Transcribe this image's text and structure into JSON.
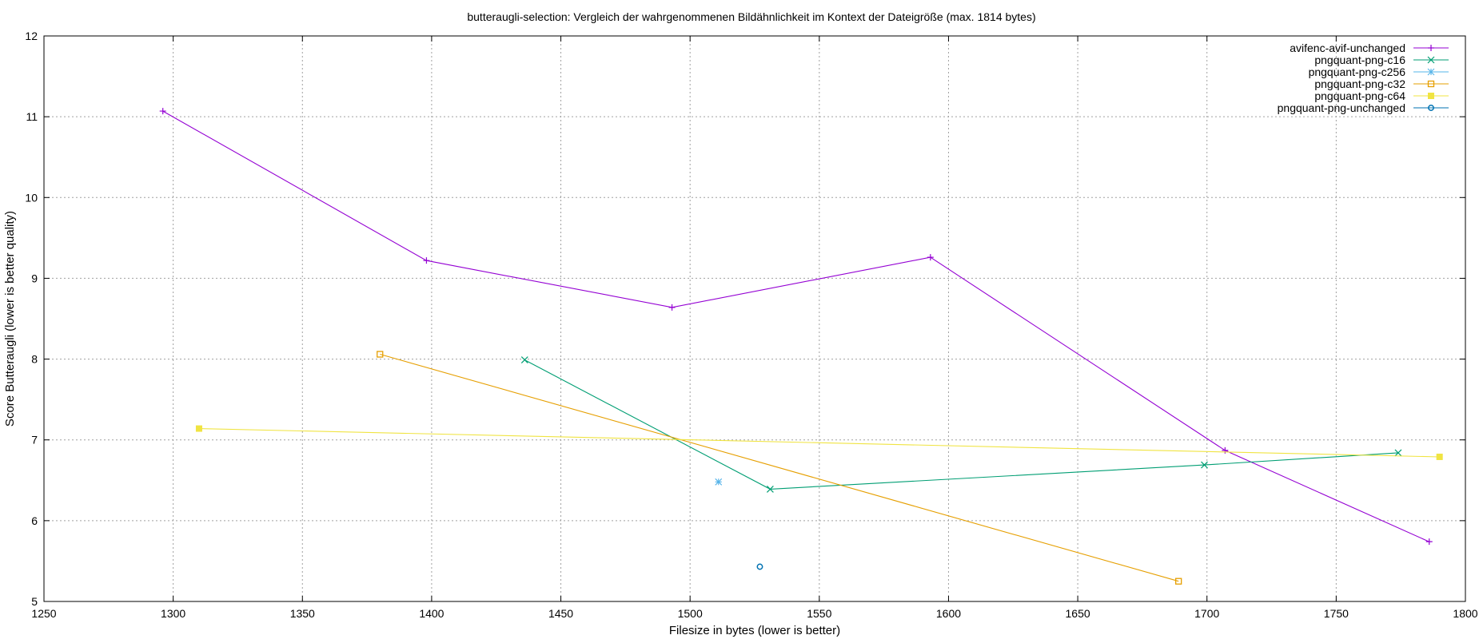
{
  "chart_data": {
    "type": "line",
    "title": "butteraugli-selection: Vergleich der wahrgenommenen Bildähnlichkeit im Kontext der Dateigröße (max. 1814 bytes)",
    "xlabel": "Filesize in bytes (lower is better)",
    "ylabel": "Score Butteraugli (lower is better quality)",
    "xlim": [
      1250,
      1800
    ],
    "ylim": [
      5,
      12
    ],
    "xticks": [
      "1250",
      "1300",
      "1350",
      "1400",
      "1450",
      "1500",
      "1550",
      "1600",
      "1650",
      "1700",
      "1750",
      "1800"
    ],
    "yticks": [
      "5",
      "6",
      "7",
      "8",
      "9",
      "10",
      "11",
      "12"
    ],
    "grid": true,
    "legend_position": "top-right",
    "series": [
      {
        "name": "avifenc-avif-unchanged",
        "color": "#9400d3",
        "marker": "plus",
        "points": [
          [
            1296,
            11.07
          ],
          [
            1398,
            9.22
          ],
          [
            1493,
            8.64
          ],
          [
            1593,
            9.26
          ],
          [
            1707,
            6.87
          ],
          [
            1786,
            5.74
          ]
        ]
      },
      {
        "name": "pngquant-png-c16",
        "color": "#009e73",
        "marker": "cross",
        "points": [
          [
            1436,
            7.99
          ],
          [
            1531,
            6.39
          ],
          [
            1699,
            6.69
          ],
          [
            1774,
            6.84
          ]
        ]
      },
      {
        "name": "pngquant-png-c256",
        "color": "#56b4e9",
        "marker": "star",
        "points": [
          [
            1511,
            6.48
          ]
        ]
      },
      {
        "name": "pngquant-png-c32",
        "color": "#e69f00",
        "marker": "square-open",
        "points": [
          [
            1380,
            8.06
          ],
          [
            1689,
            5.25
          ]
        ]
      },
      {
        "name": "pngquant-png-c64",
        "color": "#f0e442",
        "marker": "square-filled",
        "points": [
          [
            1310,
            7.14
          ],
          [
            1790,
            6.79
          ]
        ]
      },
      {
        "name": "pngquant-png-unchanged",
        "color": "#0072b2",
        "marker": "circle-open",
        "points": [
          [
            1527,
            5.43
          ]
        ]
      }
    ]
  }
}
